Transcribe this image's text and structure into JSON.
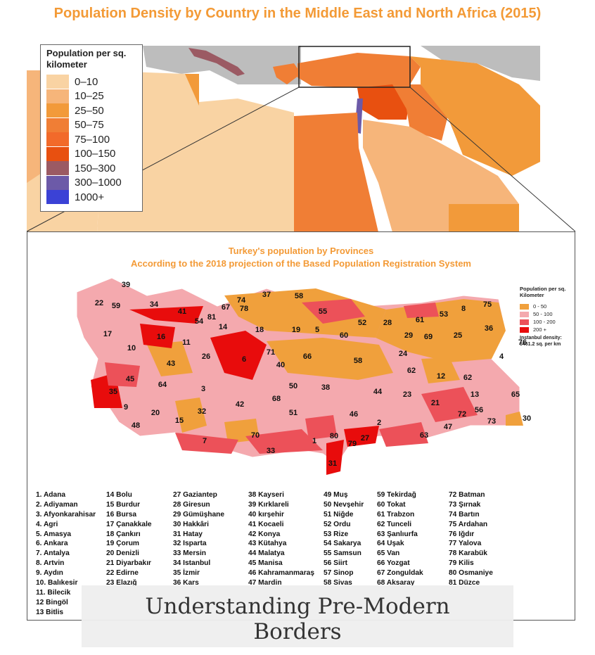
{
  "title": "Population Density by Country in the Middle East and North Africa (2015)",
  "legend": {
    "heading": "Population per sq. kilometer",
    "items": [
      {
        "label": "0–10",
        "color": "#f9d3a3"
      },
      {
        "label": "10–25",
        "color": "#f6b57a"
      },
      {
        "label": "25–50",
        "color": "#f29a3a"
      },
      {
        "label": "50–75",
        "color": "#f07e35"
      },
      {
        "label": "75–100",
        "color": "#f26a2a"
      },
      {
        "label": "100–150",
        "color": "#e85010"
      },
      {
        "label": "150–300",
        "color": "#9b5a63"
      },
      {
        "label": "300–1000",
        "color": "#6c5aa8"
      },
      {
        "label": "1000+",
        "color": "#3b42d6"
      }
    ]
  },
  "turkey": {
    "title_line1": "Turkey's population by Provinces",
    "title_line2": "According to the 2018 projection of the Based Population Registration System",
    "legend_heading": "Population per sq. Kilometer",
    "legend_items": [
      {
        "label": "0 - 50",
        "color": "#f0a03c"
      },
      {
        "label": "50 - 100",
        "color": "#f4a9ae"
      },
      {
        "label": "100 - 200",
        "color": "#ec5159"
      },
      {
        "label": "200 +",
        "color": "#e80c0c"
      }
    ],
    "istanbul_note": "Instanbul density: 5461.2 sq. per km",
    "map_labels": [
      "39",
      "22",
      "59",
      "34",
      "74",
      "37",
      "58",
      "41",
      "67",
      "78",
      "54",
      "81",
      "55",
      "8",
      "75",
      "14",
      "18",
      "19",
      "52",
      "28",
      "61",
      "53",
      "17",
      "16",
      "11",
      "5",
      "60",
      "29",
      "69",
      "25",
      "36",
      "76",
      "10",
      "26",
      "6",
      "71",
      "66",
      "58",
      "24",
      "4",
      "43",
      "40",
      "45",
      "64",
      "3",
      "62",
      "12",
      "62",
      "35",
      "50",
      "38",
      "44",
      "23",
      "68",
      "21",
      "13",
      "65",
      "9",
      "20",
      "42",
      "51",
      "46",
      "72",
      "56",
      "73",
      "30",
      "15",
      "32",
      "48",
      "7",
      "70",
      "80",
      "2",
      "47",
      "27",
      "63",
      "33",
      "1",
      "79",
      "31"
    ],
    "provinces_col1": [
      "1. Adana",
      "2. Adiyaman",
      "3. Afyonkarahisar",
      "4. Agri",
      "5. Amasya",
      "6. Ankara",
      "7. Antalya",
      "8. Artvin",
      "9. Aydın",
      "10. Balıkesir",
      "11. Bilecik",
      "12 Bingöl",
      "13 Bitlis"
    ],
    "provinces_col2": [
      "14 Bolu",
      "15 Burdur",
      "16 Bursa",
      "17 Çanakkale",
      "18 Çankırı",
      "19 Çorum",
      "20 Denizli",
      "21 Diyarbakır",
      "22 Edirne",
      "23 Elazığ"
    ],
    "provinces_col3": [
      "27 Gaziantep",
      "28 Giresun",
      "29 Gümüşhane",
      "30 Hakkâri",
      "31 Hatay",
      "32 Isparta",
      "33 Mersin",
      "34 Istanbul",
      "35 İzmir",
      "36 Kars"
    ],
    "provinces_col4": [
      "38 Kayseri",
      "39 Kırklareli",
      "40 kırşehir",
      "41 Kocaeli",
      "42 Konya",
      "43 Kütahya",
      "44 Malatya",
      "45 Manisa",
      "46 Kahramanmaraş",
      "47 Mardin"
    ],
    "provinces_col5": [
      "49 Muş",
      "50 Nevşehir",
      "51 Niğde",
      "52 Ordu",
      "53 Rize",
      "54 Sakarya",
      "55 Samsun",
      "56 Siirt",
      "57 Sinop",
      "58 Sivas"
    ],
    "provinces_col6": [
      "59 Tekirdağ",
      "60 Tokat",
      "61 Trabzon",
      "62 Tunceli",
      "63 Şanlıurfa",
      "64 Uşak",
      "65 Van",
      "66 Yozgat",
      "67 Zonguldak",
      "68 Aksaray"
    ],
    "provinces_col7": [
      "72 Batman",
      "73 Şırnak",
      "74 Bartın",
      "75 Ardahan",
      "76 Iğdır",
      "77 Yalova",
      "78 Karabük",
      "79 Kilis",
      "80 Osmaniye",
      "81 Düzce"
    ]
  },
  "caption": {
    "line1": "Understanding Pre-Modern",
    "line2": "Borders"
  }
}
